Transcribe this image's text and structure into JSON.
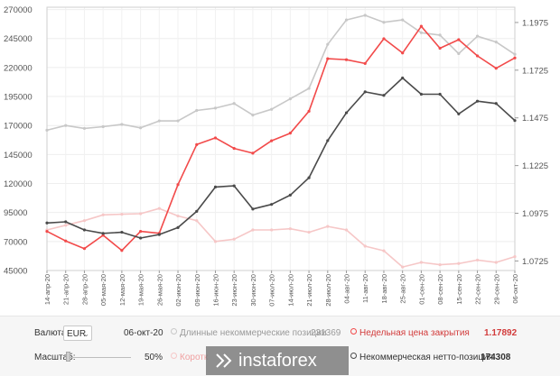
{
  "chart_data": {
    "type": "line",
    "x": [
      "14-апр-20",
      "21-апр-20",
      "28-апр-20",
      "05-мая-20",
      "12-мая-20",
      "19-мая-20",
      "26-мая-20",
      "02-июн-20",
      "09-июн-20",
      "16-июн-20",
      "23-июн-20",
      "30-июн-20",
      "07-июл-20",
      "14-июл-20",
      "21-июл-20",
      "28-июл-20",
      "04-авг-20",
      "11-авг-20",
      "18-авг-20",
      "25-авг-20",
      "01-сен-20",
      "08-сен-20",
      "15-сен-20",
      "22-сен-20",
      "29-сен-20",
      "06-окт-20"
    ],
    "y_left": {
      "ticks": [
        45000,
        70000,
        95000,
        120000,
        145000,
        170000,
        195000,
        220000,
        245000,
        270000
      ],
      "range": [
        45000,
        272000
      ]
    },
    "y_right": {
      "ticks": [
        1.0725,
        1.0975,
        1.1225,
        1.1475,
        1.1725,
        1.1975
      ],
      "range": [
        1.0675,
        1.2055
      ]
    },
    "series": [
      {
        "name": "Длинные некоммерческие позиции",
        "axis": "left",
        "color": "#c8c8c8",
        "values": [
          166000,
          170000,
          167500,
          169000,
          171000,
          168000,
          174000,
          174000,
          183000,
          185000,
          189000,
          179000,
          184000,
          193000,
          202000,
          240000,
          261000,
          265000,
          259000,
          261000,
          250000,
          248000,
          232000,
          247000,
          242000,
          231369
        ]
      },
      {
        "name": "Короткие некоммерческие позиции",
        "axis": "left",
        "color": "#f6c7c7",
        "values": [
          80000,
          84000,
          88000,
          93000,
          93500,
          94000,
          98500,
          92000,
          88000,
          70000,
          72000,
          80000,
          80000,
          81000,
          78000,
          83000,
          80000,
          66000,
          62000,
          48000,
          52000,
          50000,
          51000,
          54000,
          52000,
          57000
        ]
      },
      {
        "name": "Недельная цена закрытия",
        "axis": "right",
        "color": "#f24a4a",
        "values": [
          1.088,
          1.083,
          1.079,
          1.086,
          1.078,
          1.088,
          1.087,
          1.1125,
          1.1335,
          1.137,
          1.1315,
          1.129,
          1.1355,
          1.1395,
          1.151,
          1.1785,
          1.178,
          1.176,
          1.189,
          1.1815,
          1.1955,
          1.184,
          1.1885,
          1.18,
          1.1735,
          1.17892
        ]
      },
      {
        "name": "Некоммерческая нетто-позиция",
        "axis": "left",
        "color": "#4a4a4a",
        "values": [
          86000,
          87000,
          80000,
          77000,
          78000,
          73000,
          76000,
          82000,
          96000,
          117000,
          118000,
          98000,
          102000,
          110000,
          125000,
          157000,
          181000,
          199000,
          196000,
          211000,
          197000,
          197000,
          180000,
          191000,
          189000,
          174308
        ]
      }
    ]
  },
  "panel": {
    "currency_label": "Валюта:",
    "currency_value": "EUR",
    "date": "06-окт-20",
    "long_label": "Длинные некоммерческие позиции",
    "long_value": "231369",
    "close_label": "Недельная цена закрытия",
    "close_value": "1.17892",
    "scale_label": "Масштаб:",
    "scale_value": "50%",
    "short_label": "Коротк",
    "net_label": "Некоммерческая нетто-позиция",
    "net_value": "174308",
    "watermark": "instaforex"
  },
  "colors": {
    "long": "#c8c8c8",
    "short": "#f6c7c7",
    "close": "#f24a4a",
    "net": "#4a4a4a"
  }
}
